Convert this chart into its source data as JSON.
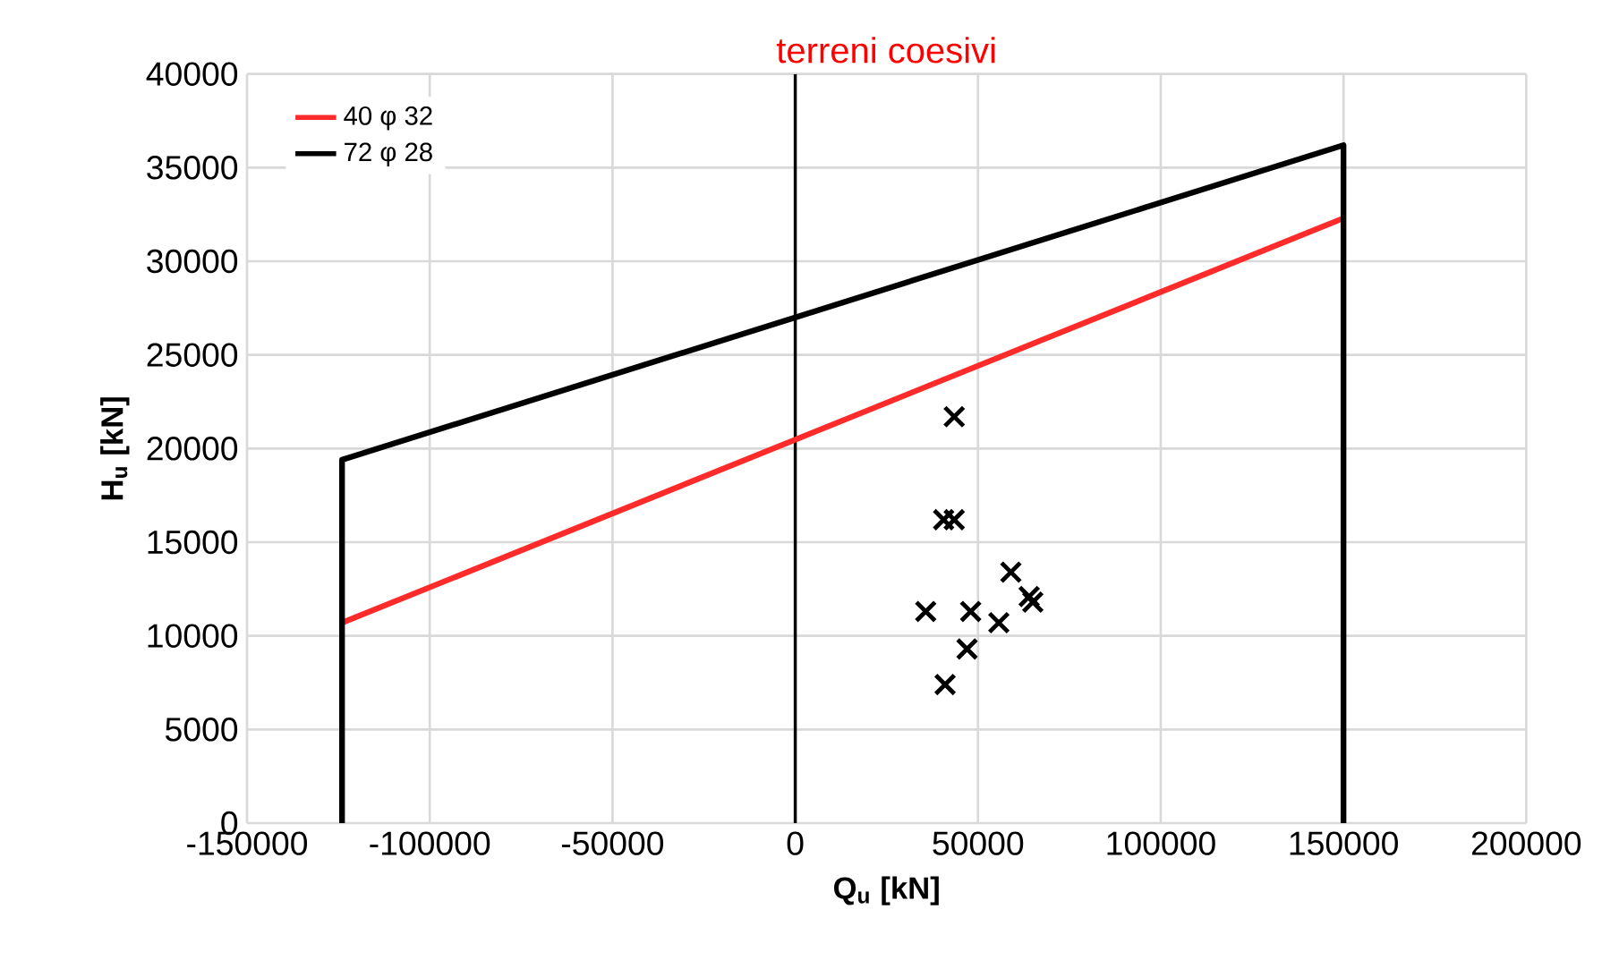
{
  "chart_data": {
    "type": "line",
    "title": "terreni coesivi",
    "xlabel": "**Q$_{u}$ [kN]**",
    "ylabel": "**H$_{u}$ [kN]**",
    "xlim": [
      -150000,
      200000
    ],
    "xticks": [
      -150000,
      -100000,
      -50000,
      0,
      50000,
      100000,
      150000,
      200000
    ],
    "ylim": [
      0,
      40000
    ],
    "yticks": [
      0,
      5000,
      10000,
      15000,
      20000,
      25000,
      30000,
      35000,
      40000
    ],
    "grid": true,
    "legend": "top left",
    "ref_lines": [
      {
        "axis": "x",
        "value": 0,
        "color": "#000000"
      }
    ],
    "series": [
      {
        "name": "40 φ 32",
        "color": "#ff2a2a",
        "marker": "none",
        "x": [
          -124000,
          150000
        ],
        "values": [
          10700,
          32300
        ]
      },
      {
        "name": "72 φ 28",
        "color": "#000000",
        "marker": "none",
        "x": [
          -124000,
          -124000,
          150000,
          150000
        ],
        "values": [
          0,
          19400,
          36200,
          0
        ]
      },
      {
        "type": "scatter",
        "color": "#000000",
        "marker": "cross",
        "x": [
          43500,
          40600,
          43500,
          59000,
          35700,
          48000,
          64000,
          65000,
          55700,
          47000,
          41000
        ],
        "values": [
          21700,
          16200,
          16200,
          13400,
          11300,
          11300,
          12100,
          11800,
          10700,
          9300,
          7400
        ]
      }
    ]
  }
}
